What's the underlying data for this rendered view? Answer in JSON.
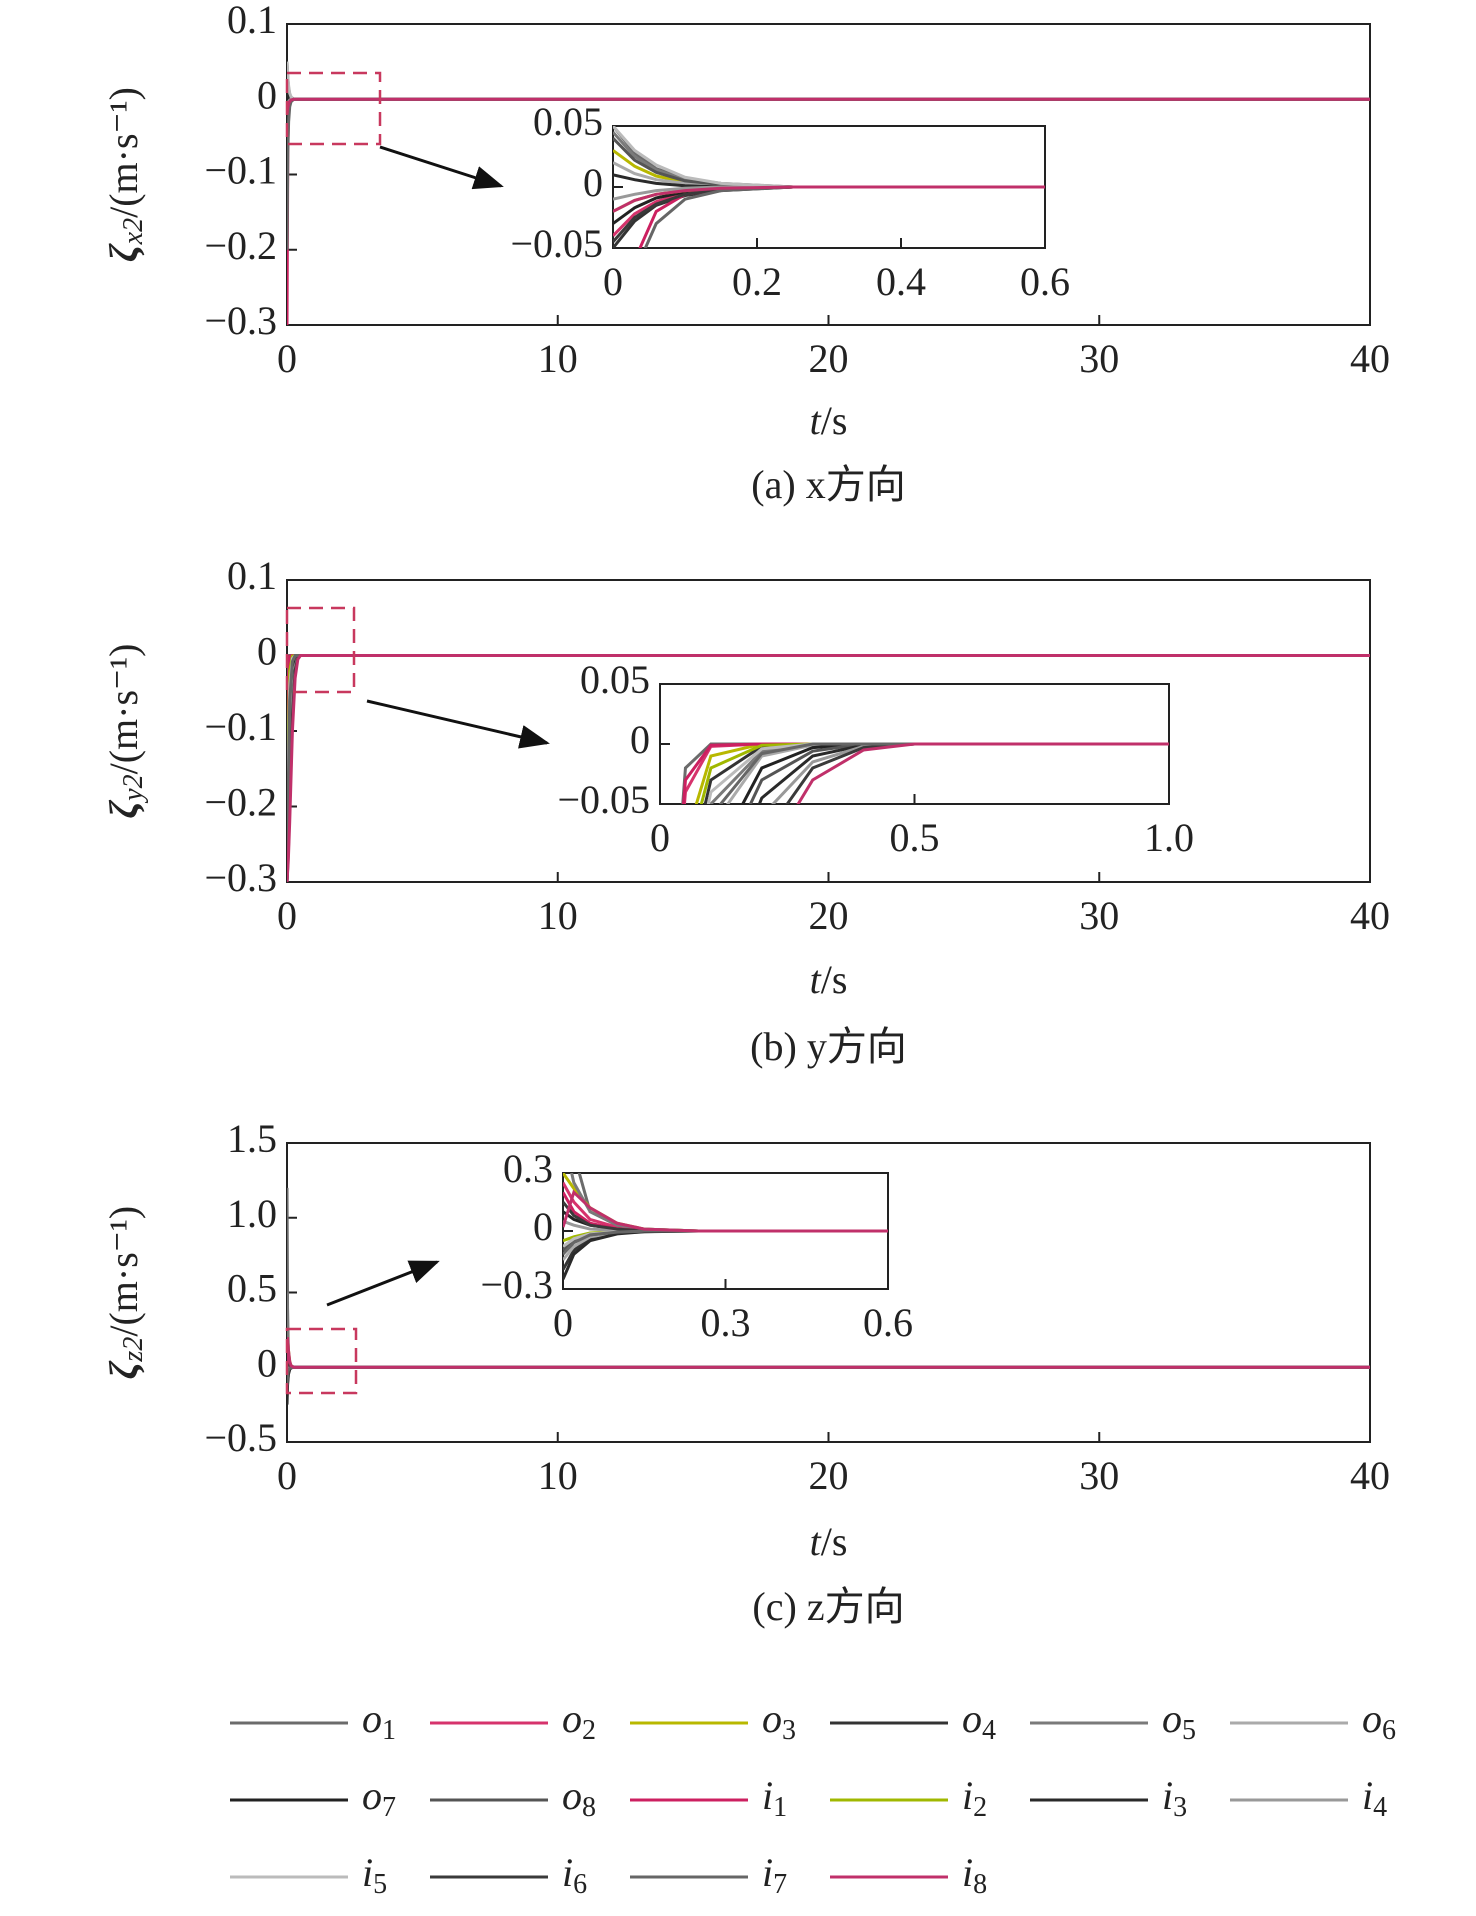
{
  "legend": [
    {
      "name": "o1",
      "color": "#6b6b6b"
    },
    {
      "name": "o2",
      "color": "#d6336c"
    },
    {
      "name": "o3",
      "color": "#b8b800"
    },
    {
      "name": "o4",
      "color": "#333333"
    },
    {
      "name": "o5",
      "color": "#7a7a7a"
    },
    {
      "name": "o6",
      "color": "#aaaaaa"
    },
    {
      "name": "o7",
      "color": "#222222"
    },
    {
      "name": "o8",
      "color": "#555555"
    },
    {
      "name": "i1",
      "color": "#cc2060"
    },
    {
      "name": "i2",
      "color": "#a0b800"
    },
    {
      "name": "i3",
      "color": "#2a2a2a"
    },
    {
      "name": "i4",
      "color": "#999999"
    },
    {
      "name": "i5",
      "color": "#bbbbbb"
    },
    {
      "name": "i6",
      "color": "#3a3a3a"
    },
    {
      "name": "i7",
      "color": "#666666"
    },
    {
      "name": "i8",
      "color": "#c0306a"
    }
  ],
  "chart_data": [
    {
      "type": "line",
      "axis_label": "ζx2/(m·s⁻¹)",
      "x_label": "t/s",
      "caption": "(a) x方向",
      "x": [
        0,
        0.03,
        0.06,
        0.1,
        0.15,
        0.25,
        0.4,
        40
      ],
      "xlim": [
        0,
        40
      ],
      "xticks": [
        0,
        10,
        20,
        30,
        40
      ],
      "ylim": [
        -0.3,
        0.1
      ],
      "yticks": [
        {
          "value": -0.3,
          "label": "−0.3"
        },
        {
          "value": -0.2,
          "label": "−0.2"
        },
        {
          "value": -0.1,
          "label": "−0.1"
        },
        0,
        0.1
      ],
      "inset": {
        "xlim": [
          0,
          0.6
        ],
        "xticks": [
          0,
          0.2,
          0.4,
          0.6
        ],
        "ylim": [
          -0.05,
          0.05
        ],
        "yticks": [
          {
            "value": -0.05,
            "label": "−0.05"
          },
          0,
          0.05
        ]
      },
      "series": [
        {
          "values": [
            0.05,
            0.028,
            0.015,
            0.007,
            0.003,
            0,
            0,
            0
          ]
        },
        {
          "values": [
            -0.04,
            -0.022,
            -0.012,
            -0.005,
            -0.002,
            0,
            0,
            0
          ]
        },
        {
          "values": [
            0.03,
            0.017,
            0.009,
            0.004,
            0.002,
            0,
            0,
            0
          ]
        },
        {
          "values": [
            -0.05,
            -0.028,
            -0.015,
            -0.007,
            -0.003,
            0,
            0,
            0
          ]
        },
        {
          "values": [
            0.045,
            0.025,
            0.014,
            0.006,
            0.002,
            0,
            0,
            0
          ]
        },
        {
          "values": [
            0.02,
            0.011,
            0.006,
            0.003,
            0.001,
            0,
            0,
            0
          ]
        },
        {
          "values": [
            -0.03,
            -0.017,
            -0.009,
            -0.004,
            -0.002,
            0,
            0,
            0
          ]
        },
        {
          "values": [
            0.04,
            0.022,
            0.012,
            0.005,
            0.002,
            0,
            0,
            0
          ]
        },
        {
          "values": [
            -0.3,
            -0.06,
            -0.02,
            -0.006,
            -0.002,
            0,
            0,
            0
          ]
        },
        {
          "values": [
            -0.02,
            -0.011,
            -0.006,
            -0.003,
            -0.001,
            0,
            0,
            0
          ]
        },
        {
          "values": [
            0.01,
            0.006,
            0.003,
            0.001,
            0,
            0,
            0,
            0
          ]
        },
        {
          "values": [
            -0.01,
            -0.006,
            -0.003,
            -0.001,
            0,
            0,
            0,
            0
          ]
        },
        {
          "values": [
            0.05,
            0.03,
            0.018,
            0.008,
            0.003,
            0,
            0,
            0
          ]
        },
        {
          "values": [
            -0.045,
            -0.025,
            -0.014,
            -0.006,
            -0.002,
            0,
            0,
            0
          ]
        },
        {
          "values": [
            -0.2,
            -0.07,
            -0.03,
            -0.01,
            -0.003,
            0,
            0,
            0
          ]
        },
        {
          "values": [
            -0.02,
            -0.011,
            -0.006,
            -0.003,
            -0.001,
            0,
            0,
            0
          ]
        }
      ]
    },
    {
      "type": "line",
      "axis_label": "ζy2/(m·s⁻¹)",
      "x_label": "t/s",
      "caption": "(b) y方向",
      "x": [
        0,
        0.05,
        0.1,
        0.2,
        0.3,
        0.4,
        0.5,
        40
      ],
      "xlim": [
        0,
        40
      ],
      "xticks": [
        0,
        10,
        20,
        30,
        40
      ],
      "ylim": [
        -0.3,
        0.1
      ],
      "yticks": [
        {
          "value": -0.3,
          "label": "−0.3"
        },
        {
          "value": -0.2,
          "label": "−0.2"
        },
        {
          "value": -0.1,
          "label": "−0.1"
        },
        0,
        0.1
      ],
      "inset": {
        "xlim": [
          0,
          1
        ],
        "xticks": [
          0,
          0.5,
          {
            "value": 1,
            "label": "1.0"
          }
        ],
        "ylim": [
          -0.05,
          0.05
        ],
        "yticks": [
          {
            "value": -0.05,
            "label": "−0.05"
          },
          0,
          0.05
        ]
      },
      "series": [
        {
          "values": [
            -0.3,
            -0.02,
            0,
            0,
            0,
            0,
            0,
            0
          ]
        },
        {
          "values": [
            -0.3,
            -0.04,
            -0.002,
            0,
            0,
            0,
            0,
            0
          ]
        },
        {
          "values": [
            -0.3,
            -0.08,
            -0.01,
            0,
            0,
            0,
            0,
            0
          ]
        },
        {
          "values": [
            -0.3,
            -0.12,
            -0.03,
            -0.002,
            0,
            0,
            0,
            0
          ]
        },
        {
          "values": [
            -0.3,
            -0.15,
            -0.05,
            -0.006,
            0,
            0,
            0,
            0
          ]
        },
        {
          "values": [
            -0.3,
            -0.18,
            -0.07,
            -0.01,
            -0.001,
            0,
            0,
            0
          ]
        },
        {
          "values": [
            -0.3,
            -0.2,
            -0.1,
            -0.02,
            -0.003,
            0,
            0,
            0
          ]
        },
        {
          "values": [
            -0.3,
            -0.22,
            -0.12,
            -0.03,
            -0.006,
            0,
            0,
            0
          ]
        },
        {
          "values": [
            -0.3,
            -0.03,
            -0.001,
            0,
            0,
            0,
            0,
            0
          ]
        },
        {
          "values": [
            -0.3,
            -0.1,
            -0.02,
            -0.001,
            0,
            0,
            0,
            0
          ]
        },
        {
          "values": [
            -0.3,
            -0.24,
            -0.15,
            -0.045,
            -0.01,
            -0.001,
            0,
            0
          ]
        },
        {
          "values": [
            -0.3,
            -0.25,
            -0.18,
            -0.06,
            -0.015,
            -0.002,
            0,
            0
          ]
        },
        {
          "values": [
            -0.3,
            -0.14,
            -0.04,
            -0.004,
            0,
            0,
            0,
            0
          ]
        },
        {
          "values": [
            -0.3,
            -0.26,
            -0.2,
            -0.08,
            -0.02,
            -0.003,
            0,
            0
          ]
        },
        {
          "values": [
            -0.3,
            -0.17,
            -0.06,
            -0.008,
            0,
            0,
            0,
            0
          ]
        },
        {
          "values": [
            -0.3,
            -0.27,
            -0.22,
            -0.1,
            -0.03,
            -0.005,
            0,
            0
          ]
        }
      ]
    },
    {
      "type": "line",
      "axis_label": "ζz2/(m·s⁻¹)",
      "x_label": "t/s",
      "caption": "(c) z方向",
      "x": [
        0,
        0.02,
        0.05,
        0.1,
        0.15,
        0.25,
        0.4,
        40
      ],
      "xlim": [
        0,
        40
      ],
      "xticks": [
        0,
        10,
        20,
        30,
        40
      ],
      "ylim": [
        -0.5,
        1.5
      ],
      "yticks": [
        {
          "value": -0.5,
          "label": "−0.5"
        },
        0,
        0.5,
        {
          "value": 1,
          "label": "1.0"
        },
        1.5
      ],
      "inset": {
        "xlim": [
          0,
          0.6
        ],
        "xticks": [
          0,
          0.3,
          0.6
        ],
        "ylim": [
          -0.3,
          0.3
        ],
        "yticks": [
          {
            "value": -0.3,
            "label": "−0.3"
          },
          0,
          0.3
        ]
      },
      "series": [
        {
          "values": [
            1.2,
            0.4,
            0.1,
            0.03,
            0.01,
            0,
            0,
            0
          ]
        },
        {
          "values": [
            0.25,
            0.15,
            0.06,
            0.02,
            0.005,
            0,
            0,
            0
          ]
        },
        {
          "values": [
            0.3,
            0.22,
            0.12,
            0.04,
            0.01,
            0,
            0,
            0
          ]
        },
        {
          "values": [
            -0.2,
            -0.1,
            -0.04,
            -0.01,
            -0.003,
            0,
            0,
            0
          ]
        },
        {
          "values": [
            0.5,
            0.25,
            0.1,
            0.03,
            0.01,
            0,
            0,
            0
          ]
        },
        {
          "values": [
            -0.15,
            -0.08,
            -0.03,
            -0.01,
            0,
            0,
            0,
            0
          ]
        },
        {
          "values": [
            0.1,
            0.06,
            0.03,
            0.01,
            0,
            0,
            0,
            0
          ]
        },
        {
          "values": [
            -0.1,
            -0.05,
            -0.02,
            -0.005,
            0,
            0,
            0,
            0
          ]
        },
        {
          "values": [
            0.2,
            0.1,
            0.04,
            0.01,
            0.003,
            0,
            0,
            0
          ]
        },
        {
          "values": [
            -0.05,
            -0.03,
            -0.01,
            -0.003,
            0,
            0,
            0,
            0
          ]
        },
        {
          "values": [
            -0.25,
            -0.12,
            -0.05,
            -0.015,
            -0.004,
            0,
            0,
            0
          ]
        },
        {
          "values": [
            0.05,
            0.03,
            0.01,
            0.003,
            0,
            0,
            0,
            0
          ]
        },
        {
          "values": [
            -0.08,
            -0.04,
            -0.015,
            -0.004,
            0,
            0,
            0,
            0
          ]
        },
        {
          "values": [
            0.15,
            0.08,
            0.03,
            0.01,
            0,
            0,
            0,
            0
          ]
        },
        {
          "values": [
            -0.12,
            -0.06,
            -0.02,
            -0.006,
            0,
            0,
            0,
            0
          ]
        },
        {
          "values": [
            0.02,
            0.2,
            0.12,
            0.04,
            0.01,
            0,
            0,
            0
          ]
        }
      ]
    }
  ]
}
